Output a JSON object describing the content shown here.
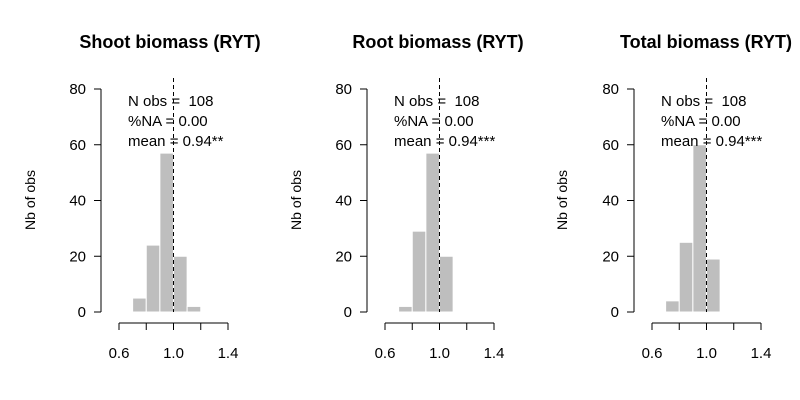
{
  "chart_data": [
    {
      "type": "bar",
      "title": "Shoot biomass (RYT)",
      "ylabel": "Nb of obs",
      "xlabel": "",
      "bin_edges": [
        0.6,
        0.7,
        0.8,
        0.9,
        1.0,
        1.1,
        1.2,
        1.3,
        1.4
      ],
      "counts": [
        0,
        5,
        24,
        57,
        20,
        2,
        0,
        0
      ],
      "xlim": [
        0.6,
        1.4
      ],
      "ylim": [
        0,
        80
      ],
      "xticks": [
        0.6,
        0.8,
        1.0,
        1.2,
        1.4
      ],
      "xtick_labels": [
        "0.6",
        "",
        "1.0",
        "",
        "1.4"
      ],
      "yticks": [
        0,
        20,
        40,
        60,
        80
      ],
      "ytick_labels": [
        "0",
        "20",
        "40",
        "60",
        "80"
      ],
      "reference_line": 1.0,
      "annotations": [
        "N obs =  108",
        "%NA = 0.00",
        "mean = 0.94**"
      ],
      "grid": false,
      "bar_color": "#bebebe"
    },
    {
      "type": "bar",
      "title": "Root biomass (RYT)",
      "ylabel": "Nb of obs",
      "xlabel": "",
      "bin_edges": [
        0.6,
        0.7,
        0.8,
        0.9,
        1.0,
        1.1,
        1.2,
        1.3,
        1.4
      ],
      "counts": [
        0,
        2,
        29,
        57,
        20,
        0,
        0,
        0
      ],
      "xlim": [
        0.6,
        1.4
      ],
      "ylim": [
        0,
        80
      ],
      "xticks": [
        0.6,
        0.8,
        1.0,
        1.2,
        1.4
      ],
      "xtick_labels": [
        "0.6",
        "",
        "1.0",
        "",
        "1.4"
      ],
      "yticks": [
        0,
        20,
        40,
        60,
        80
      ],
      "ytick_labels": [
        "0",
        "20",
        "40",
        "60",
        "80"
      ],
      "reference_line": 1.0,
      "annotations": [
        "N obs =  108",
        "%NA = 0.00",
        "mean = 0.94***"
      ],
      "grid": false,
      "bar_color": "#bebebe"
    },
    {
      "type": "bar",
      "title": "Total biomass (RYT)",
      "ylabel": "Nb of obs",
      "xlabel": "",
      "bin_edges": [
        0.6,
        0.7,
        0.8,
        0.9,
        1.0,
        1.1,
        1.2,
        1.3,
        1.4
      ],
      "counts": [
        0,
        4,
        25,
        60,
        19,
        0,
        0,
        0
      ],
      "xlim": [
        0.6,
        1.4
      ],
      "ylim": [
        0,
        80
      ],
      "xticks": [
        0.6,
        0.8,
        1.0,
        1.2,
        1.4
      ],
      "xtick_labels": [
        "0.6",
        "",
        "1.0",
        "",
        "1.4"
      ],
      "yticks": [
        0,
        20,
        40,
        60,
        80
      ],
      "ytick_labels": [
        "0",
        "20",
        "40",
        "60",
        "80"
      ],
      "reference_line": 1.0,
      "annotations": [
        "N obs =  108",
        "%NA = 0.00",
        "mean = 0.94***"
      ],
      "grid": false,
      "bar_color": "#bebebe"
    }
  ]
}
